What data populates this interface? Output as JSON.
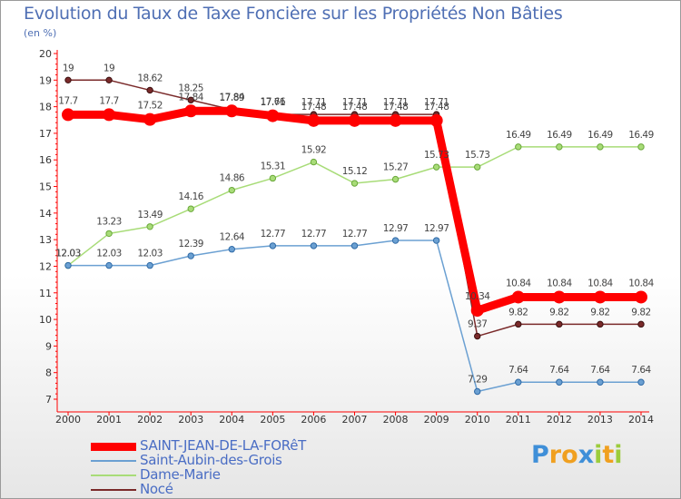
{
  "title": "Evolution du Taux de Taxe Foncière sur les Propriétés Non Bâties",
  "unit": "(en %)",
  "brand": {
    "name": "Proxiti",
    "letters": [
      {
        "ch": "P",
        "color": "#3f8fd8"
      },
      {
        "ch": "r",
        "color": "#f0a020"
      },
      {
        "ch": "o",
        "color": "#f0a020"
      },
      {
        "ch": "x",
        "color": "#3f8fd8"
      },
      {
        "ch": "i",
        "color": "#9ccc3c"
      },
      {
        "ch": "t",
        "color": "#f0a020"
      },
      {
        "ch": "i",
        "color": "#9ccc3c"
      }
    ]
  },
  "chart_data": {
    "type": "line",
    "title": "Evolution du Taux de Taxe Foncière sur les Propriétés Non Bâties",
    "ylabel": "(en %)",
    "xlabel": "",
    "ylim": [
      7,
      20
    ],
    "grid": false,
    "legend_position": "bottom-left",
    "x": [
      "2000",
      "2001",
      "2002",
      "2003",
      "2004",
      "2005",
      "2006",
      "2007",
      "2008",
      "2009",
      "2010",
      "2011",
      "2012",
      "2013",
      "2014"
    ],
    "y_ticks": [
      7,
      8,
      9,
      10,
      11,
      12,
      13,
      14,
      15,
      16,
      17,
      18,
      19,
      20
    ],
    "series": [
      {
        "name": "SAINT-JEAN-DE-LA-FORêT",
        "color": "#ff0000",
        "line_width": 9,
        "values": [
          17.7,
          17.7,
          17.52,
          17.84,
          17.84,
          17.66,
          17.48,
          17.48,
          17.48,
          17.48,
          10.34,
          10.84,
          10.84,
          10.84,
          10.84
        ],
        "labels": [
          "17.7",
          "17.7",
          "17.52",
          "17.84",
          "17.84",
          "17.66",
          "17.48",
          "17.48",
          "17.48",
          "17.48",
          "10.34",
          "10.84",
          "10.84",
          "10.84",
          "10.84"
        ]
      },
      {
        "name": "Saint-Aubin-des-Grois",
        "color": "#6ba0d2",
        "line_width": 1.5,
        "values": [
          12.03,
          12.03,
          12.03,
          12.39,
          12.64,
          12.77,
          12.77,
          12.77,
          12.97,
          12.97,
          7.29,
          7.64,
          7.64,
          7.64,
          7.64
        ],
        "labels": [
          "12.03",
          "12.03",
          "12.03",
          "12.39",
          "12.64",
          "12.77",
          "12.77",
          "12.77",
          "12.97",
          "12.97",
          "7.29",
          "7.64",
          "7.64",
          "7.64",
          "7.64"
        ]
      },
      {
        "name": "Dame-Marie",
        "color": "#a8dc78",
        "line_width": 1.5,
        "values": [
          12.03,
          13.23,
          13.49,
          14.16,
          14.86,
          15.31,
          15.92,
          15.12,
          15.27,
          15.73,
          15.73,
          16.49,
          16.49,
          16.49,
          16.49
        ],
        "labels": [
          "12.03",
          "13.23",
          "13.49",
          "14.16",
          "14.86",
          "15.31",
          "15.92",
          "15.12",
          "15.27",
          "15.73",
          "15.73",
          "16.49",
          "16.49",
          "16.49",
          "16.49"
        ]
      },
      {
        "name": "Nocé",
        "color": "#7a2a2a",
        "line_width": 1.5,
        "values": [
          19,
          19,
          18.62,
          18.25,
          17.89,
          17.71,
          17.71,
          17.71,
          17.71,
          17.71,
          9.37,
          9.82,
          9.82,
          9.82,
          9.82
        ],
        "labels": [
          "19",
          "19",
          "18.62",
          "18.25",
          "17.89",
          "17.71",
          "17.71",
          "17.71",
          "17.71",
          "17.71",
          "9.37",
          "9.82",
          "9.82",
          "9.82",
          "9.82"
        ]
      }
    ]
  }
}
